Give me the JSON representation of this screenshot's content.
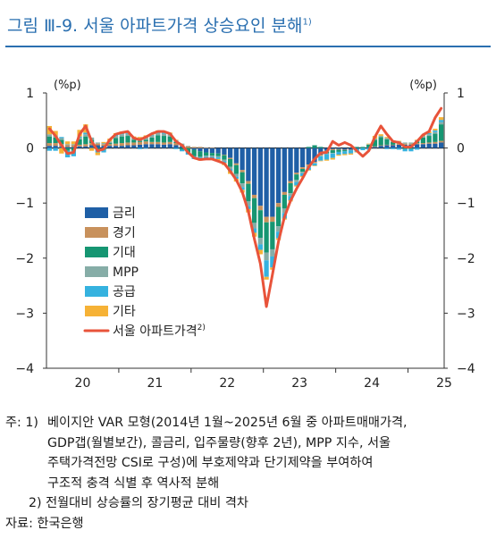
{
  "figure": {
    "title": "그림 Ⅲ-9. 서울 아파트가격 상승요인 분해",
    "title_sup": "1)"
  },
  "chart_data": {
    "type": "bar",
    "stacked": true,
    "unit_left": "(%p)",
    "unit_right": "(%p)",
    "ylim": [
      -4,
      1
    ],
    "yticks": [
      "1",
      "0",
      "−1",
      "−2",
      "−3",
      "−4"
    ],
    "x_labels": [
      "20",
      "21",
      "22",
      "23",
      "24",
      "25"
    ],
    "x_start": "2020-01",
    "x_end": "2025-06",
    "legend_position": "inside-left",
    "legend": [
      {
        "name": "금리",
        "color": "#1f5fa6",
        "kind": "bar"
      },
      {
        "name": "경기",
        "color": "#c8915c",
        "kind": "bar"
      },
      {
        "name": "기대",
        "color": "#169672",
        "kind": "bar"
      },
      {
        "name": "MPP",
        "color": "#86ada7",
        "kind": "bar"
      },
      {
        "name": "공급",
        "color": "#35b2df",
        "kind": "bar"
      },
      {
        "name": "기타",
        "color": "#f6b236",
        "kind": "bar"
      },
      {
        "name": "서울 아파트가격",
        "sup": "2)",
        "color": "#e8533a",
        "kind": "line"
      }
    ],
    "months": [
      "2020-01",
      "2020-02",
      "2020-03",
      "2020-04",
      "2020-05",
      "2020-06",
      "2020-07",
      "2020-08",
      "2020-09",
      "2020-10",
      "2020-11",
      "2020-12",
      "2021-01",
      "2021-02",
      "2021-03",
      "2021-04",
      "2021-05",
      "2021-06",
      "2021-07",
      "2021-08",
      "2021-09",
      "2021-10",
      "2021-11",
      "2021-12",
      "2022-01",
      "2022-02",
      "2022-03",
      "2022-04",
      "2022-05",
      "2022-06",
      "2022-07",
      "2022-08",
      "2022-09",
      "2022-10",
      "2022-11",
      "2022-12",
      "2023-01",
      "2023-02",
      "2023-03",
      "2023-04",
      "2023-05",
      "2023-06",
      "2023-07",
      "2023-08",
      "2023-09",
      "2023-10",
      "2023-11",
      "2023-12",
      "2024-01",
      "2024-02",
      "2024-03",
      "2024-04",
      "2024-05",
      "2024-06",
      "2024-07",
      "2024-08",
      "2024-09",
      "2024-10",
      "2024-11",
      "2024-12",
      "2025-01",
      "2025-02",
      "2025-03",
      "2025-04",
      "2025-05",
      "2025-06"
    ],
    "series": [
      {
        "name": "금리",
        "values": [
          0.04,
          0.04,
          0.03,
          0.02,
          0.02,
          0.03,
          0.03,
          0.05,
          0.05,
          0.04,
          0.04,
          0.04,
          0.04,
          0.05,
          0.05,
          0.06,
          0.07,
          0.07,
          0.07,
          0.06,
          0.07,
          0.05,
          0.03,
          0.0,
          -0.03,
          -0.06,
          -0.08,
          -0.09,
          -0.1,
          -0.12,
          -0.18,
          -0.28,
          -0.4,
          -0.6,
          -0.85,
          -1.05,
          -1.25,
          -1.25,
          -1.0,
          -0.8,
          -0.6,
          -0.45,
          -0.35,
          -0.3,
          -0.25,
          -0.12,
          -0.05,
          -0.02,
          -0.02,
          -0.03,
          -0.03,
          -0.02,
          0.0,
          0.01,
          0.02,
          0.04,
          0.05,
          0.05,
          0.06,
          0.06,
          0.06,
          0.07,
          0.07,
          0.08,
          0.08,
          0.1
        ]
      },
      {
        "name": "경기",
        "values": [
          0.05,
          0.05,
          0.04,
          0.03,
          0.03,
          0.03,
          0.04,
          0.04,
          0.03,
          0.03,
          0.03,
          0.04,
          0.05,
          0.05,
          0.05,
          0.05,
          0.05,
          0.04,
          0.04,
          0.04,
          0.04,
          0.04,
          0.03,
          0.03,
          0.02,
          0.02,
          0.01,
          0.01,
          0.0,
          -0.01,
          -0.02,
          -0.03,
          -0.04,
          -0.05,
          -0.06,
          -0.08,
          -0.1,
          -0.09,
          -0.07,
          -0.05,
          -0.04,
          -0.03,
          -0.03,
          -0.03,
          -0.02,
          -0.02,
          -0.02,
          -0.02,
          -0.01,
          -0.01,
          -0.01,
          0.0,
          0.0,
          0.0,
          0.01,
          0.01,
          0.01,
          0.01,
          0.02,
          0.02,
          0.02,
          0.02,
          0.02,
          0.02,
          0.03,
          0.03
        ]
      },
      {
        "name": "기대",
        "values": [
          0.12,
          0.1,
          0.08,
          -0.05,
          -0.05,
          0.1,
          0.14,
          0.06,
          -0.03,
          -0.03,
          0.02,
          0.1,
          0.12,
          0.12,
          0.05,
          0.02,
          0.03,
          0.08,
          0.12,
          0.12,
          0.1,
          0.02,
          -0.03,
          -0.08,
          -0.12,
          -0.1,
          -0.06,
          -0.05,
          -0.05,
          -0.08,
          -0.14,
          -0.16,
          -0.2,
          -0.32,
          -0.45,
          -0.5,
          -0.55,
          -0.5,
          -0.35,
          -0.25,
          -0.18,
          -0.1,
          -0.05,
          0.02,
          0.05,
          0.02,
          -0.03,
          -0.05,
          -0.04,
          -0.02,
          0.0,
          0.02,
          0.02,
          0.05,
          0.12,
          0.15,
          0.1,
          0.05,
          0.02,
          -0.02,
          -0.02,
          0.03,
          0.1,
          0.12,
          0.15,
          0.3
        ]
      },
      {
        "name": "MPP",
        "values": [
          0.04,
          0.04,
          0.03,
          0.02,
          0.02,
          0.03,
          0.04,
          0.04,
          0.02,
          0.02,
          0.03,
          0.04,
          0.04,
          0.04,
          0.04,
          0.04,
          0.04,
          0.04,
          0.04,
          0.04,
          0.04,
          0.03,
          0.02,
          0.01,
          0.0,
          -0.01,
          -0.02,
          -0.02,
          -0.02,
          -0.03,
          -0.04,
          -0.05,
          -0.07,
          -0.08,
          -0.1,
          -0.12,
          -0.14,
          -0.13,
          -0.1,
          -0.08,
          -0.05,
          -0.04,
          -0.03,
          -0.02,
          -0.01,
          -0.01,
          -0.01,
          -0.01,
          0.0,
          0.0,
          0.0,
          0.0,
          0.0,
          0.01,
          0.02,
          0.02,
          0.02,
          0.02,
          0.02,
          0.02,
          0.02,
          0.02,
          0.03,
          0.03,
          0.03,
          0.04
        ]
      },
      {
        "name": "공급",
        "values": [
          -0.05,
          -0.05,
          0.02,
          -0.12,
          -0.1,
          0.02,
          0.03,
          0.0,
          -0.05,
          -0.05,
          0.0,
          0.02,
          0.02,
          0.02,
          0.0,
          -0.02,
          -0.01,
          0.01,
          0.02,
          0.02,
          0.01,
          -0.02,
          -0.03,
          -0.04,
          -0.05,
          -0.04,
          -0.03,
          -0.03,
          -0.03,
          -0.03,
          -0.04,
          -0.04,
          -0.05,
          -0.06,
          -0.08,
          -0.1,
          -0.3,
          -0.2,
          -0.12,
          -0.1,
          -0.08,
          -0.06,
          -0.05,
          -0.05,
          -0.04,
          -0.08,
          -0.1,
          -0.08,
          -0.05,
          -0.05,
          -0.06,
          -0.05,
          -0.04,
          -0.03,
          0.0,
          0.0,
          -0.02,
          -0.02,
          -0.03,
          -0.04,
          -0.04,
          -0.03,
          0.0,
          0.02,
          0.03,
          0.04
        ]
      },
      {
        "name": "기타",
        "values": [
          0.15,
          0.08,
          -0.1,
          0.05,
          0.05,
          0.12,
          0.15,
          -0.05,
          -0.05,
          0.02,
          0.05,
          0.03,
          0.03,
          0.02,
          0.02,
          0.03,
          0.04,
          0.02,
          0.03,
          0.03,
          0.02,
          0.01,
          0.0,
          0.0,
          0.0,
          -0.02,
          -0.02,
          -0.02,
          -0.03,
          -0.04,
          -0.05,
          -0.05,
          -0.05,
          -0.06,
          -0.07,
          -0.08,
          -0.05,
          -0.04,
          -0.03,
          -0.02,
          -0.02,
          -0.02,
          -0.02,
          -0.01,
          -0.01,
          -0.01,
          -0.02,
          -0.03,
          -0.02,
          -0.02,
          -0.02,
          -0.01,
          0.0,
          0.01,
          0.05,
          0.03,
          0.02,
          0.01,
          0.01,
          0.0,
          0.0,
          0.01,
          0.02,
          0.03,
          0.03,
          0.05
        ]
      },
      {
        "name": "서울 아파트가격",
        "type": "line",
        "values": [
          0.35,
          0.22,
          0.05,
          -0.1,
          -0.08,
          0.25,
          0.4,
          0.12,
          -0.05,
          -0.02,
          0.15,
          0.25,
          0.28,
          0.3,
          0.18,
          0.15,
          0.2,
          0.26,
          0.3,
          0.3,
          0.26,
          0.12,
          0.05,
          -0.08,
          -0.18,
          -0.21,
          -0.2,
          -0.2,
          -0.24,
          -0.28,
          -0.42,
          -0.58,
          -0.8,
          -1.15,
          -1.65,
          -2.1,
          -2.88,
          -2.3,
          -1.7,
          -1.25,
          -0.96,
          -0.74,
          -0.55,
          -0.35,
          -0.2,
          -0.09,
          -0.08,
          0.12,
          0.05,
          0.1,
          0.05,
          -0.05,
          -0.15,
          -0.05,
          0.2,
          0.4,
          0.25,
          0.12,
          0.1,
          0.02,
          0.02,
          0.12,
          0.24,
          0.3,
          0.55,
          0.72
        ]
      }
    ]
  },
  "notes": {
    "n1_prefix": "주: 1)",
    "n1_line1": "베이지안 VAR 모형(2014년 1월~2025년 6월 중 아파트매매가격,",
    "n1_line2": "GDP갭(월별보간), 콜금리, 입주물량(향후 2년), MPP 지수, 서울",
    "n1_line3": "주택가격전망 CSI로 구성)에 부호제약과 단기제약을 부여하여",
    "n1_line4": "구조적 충격 식별 후 역사적 분해",
    "n2": "2) 전월대비 상승률의 장기평균 대비 격차",
    "source": "자료: 한국은행"
  }
}
